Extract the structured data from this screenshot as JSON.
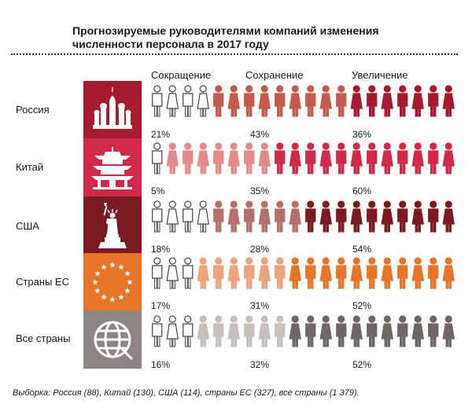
{
  "title": "Прогнозируемые руководителями компаний изменения численности персонала в 2017 году",
  "footnote": "Выборка: Россия (88), Китай (130), США (114), страны ЕС (327), все страны (1 379).",
  "chart_data": {
    "type": "bar",
    "title": "Прогнозируемые руководителями компаний изменения численности персонала в 2017 году",
    "categories": [
      "Россия",
      "Китай",
      "США",
      "Страны ЕС",
      "Все страны"
    ],
    "series": [
      {
        "name": "Сокращение",
        "values": [
          21,
          5,
          18,
          17,
          16
        ],
        "labels": [
          "21%",
          "5%",
          "18%",
          "17%",
          "16%"
        ]
      },
      {
        "name": "Сохранение",
        "values": [
          43,
          35,
          28,
          31,
          32
        ],
        "labels": [
          "43%",
          "35%",
          "28%",
          "31%",
          "32%"
        ]
      },
      {
        "name": "Увеличение",
        "values": [
          36,
          60,
          54,
          52,
          52
        ],
        "labels": [
          "36%",
          "60%",
          "54%",
          "52%",
          "52%"
        ]
      }
    ],
    "icons": [
      "cathedral-icon",
      "pagoda-icon",
      "statue-of-liberty-icon",
      "eu-stars-icon",
      "globe-icon"
    ],
    "colors": {
      "Россия": {
        "box": "#a6192e",
        "keep": "#c45a4e",
        "grow": "#a6192e"
      },
      "Китай": {
        "box": "#d0294a",
        "keep": "#e48a8a",
        "grow": "#d0294a"
      },
      "США": {
        "box": "#7c1a24",
        "keep": "#b5706d",
        "grow": "#7c1a24"
      },
      "Страны ЕС": {
        "box": "#e8742a",
        "keep": "#eca27a",
        "grow": "#e8742a"
      },
      "Все страны": {
        "box": "#8c8583",
        "keep": "#c6bfbc",
        "grow": "#6e6765"
      }
    }
  }
}
